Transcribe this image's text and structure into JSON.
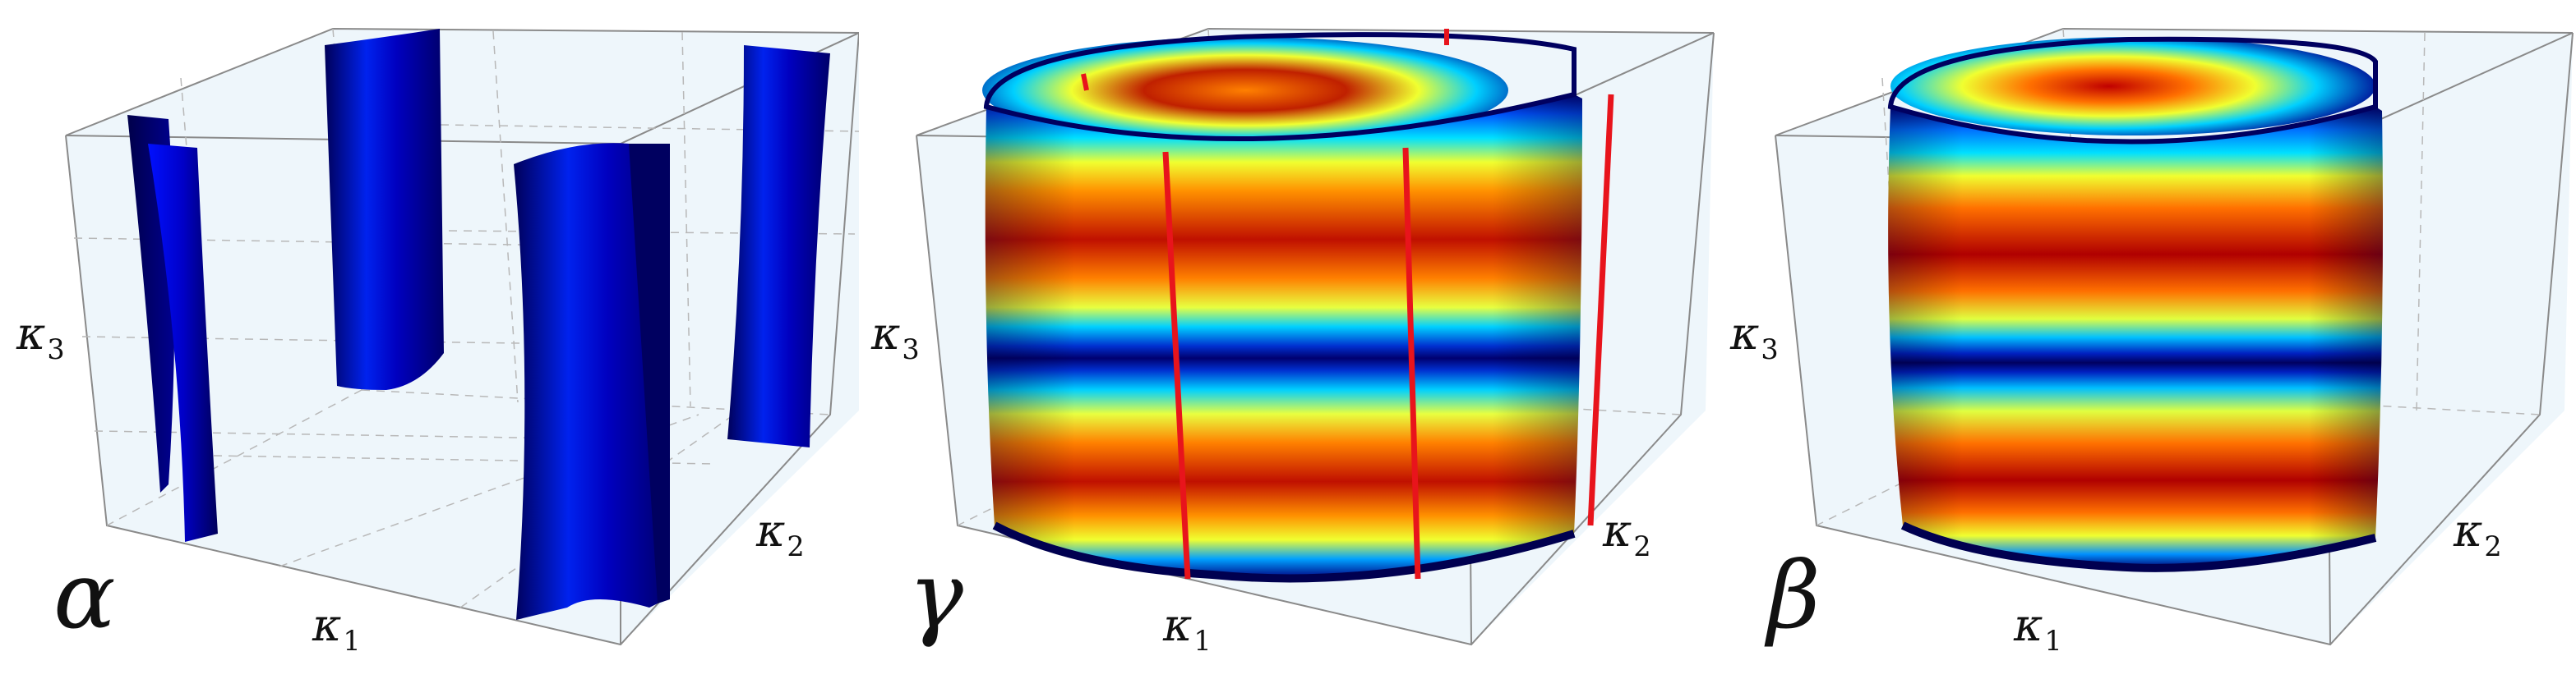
{
  "panels": [
    {
      "id": "alpha",
      "panel_label": "α",
      "axis_labels": {
        "x": "κ",
        "x_sub": "1",
        "y": "κ",
        "y_sub": "2",
        "z": "κ",
        "z_sub": "3"
      },
      "colormap": [
        "#00007a",
        "#0000c8",
        "#0030ff"
      ]
    },
    {
      "id": "gamma",
      "panel_label": "γ",
      "axis_labels": {
        "x": "κ",
        "x_sub": "1",
        "y": "κ",
        "y_sub": "2",
        "z": "κ",
        "z_sub": "3"
      },
      "colormap": [
        "#00008a",
        "#0060ff",
        "#00e0ff",
        "#f0ff20",
        "#ff9000",
        "#d01000",
        "#7a0000"
      ],
      "line_color": "#e8141c"
    },
    {
      "id": "beta",
      "panel_label": "β",
      "axis_labels": {
        "x": "κ",
        "x_sub": "1",
        "y": "κ",
        "y_sub": "2",
        "z": "κ",
        "z_sub": "3"
      },
      "colormap": [
        "#00008a",
        "#0060ff",
        "#00e0ff",
        "#f0ff20",
        "#ff9000",
        "#d01000",
        "#7a0000"
      ]
    }
  ]
}
